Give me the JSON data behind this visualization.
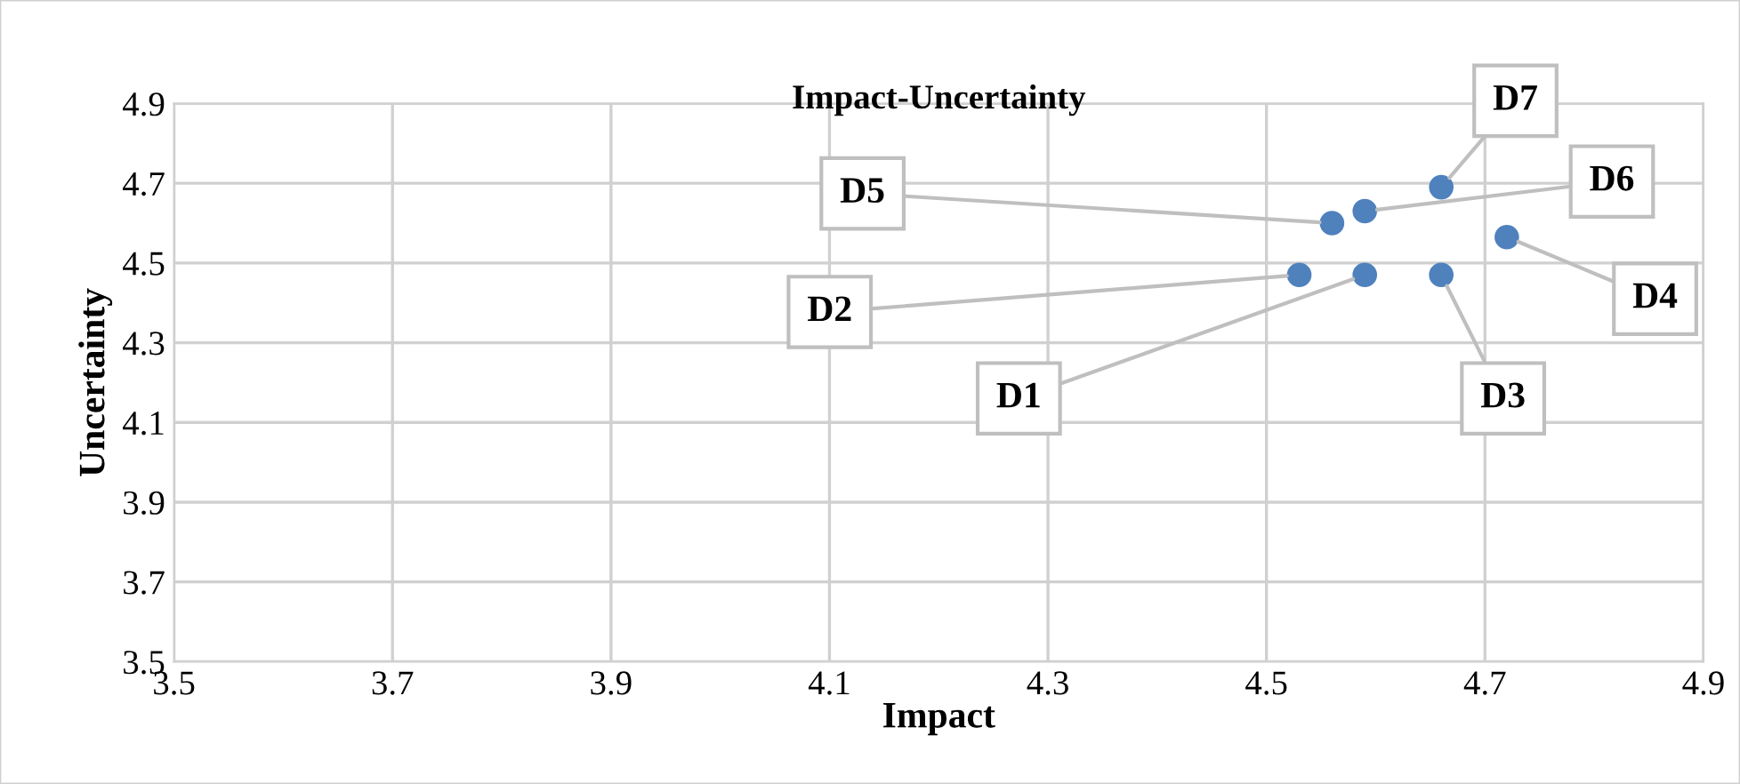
{
  "chart_data": {
    "type": "scatter",
    "title": "Impact-Uncertainty",
    "xlabel": "Impact",
    "ylabel": "Uncertainty",
    "x": [
      4.59,
      4.53,
      4.66,
      4.72,
      4.56,
      4.59,
      4.66
    ],
    "series": [
      {
        "color": "#4f81bd",
        "values": [
          4.47,
          4.47,
          4.47,
          4.565,
          4.6,
          4.63,
          4.69
        ]
      }
    ],
    "value_labels": [
      "D1",
      "D2",
      "D3",
      "D4",
      "D5",
      "D6",
      "D7"
    ],
    "xlim": [
      3.5,
      4.9
    ],
    "xticks": [
      3.5,
      3.7,
      3.9,
      4.1,
      4.3,
      4.5,
      4.7,
      4.9
    ],
    "ylim": [
      3.5,
      4.9
    ],
    "yticks": [
      3.5,
      3.7,
      3.9,
      4.1,
      4.3,
      4.5,
      4.7,
      4.9
    ],
    "grid": true,
    "marker": "circle"
  }
}
